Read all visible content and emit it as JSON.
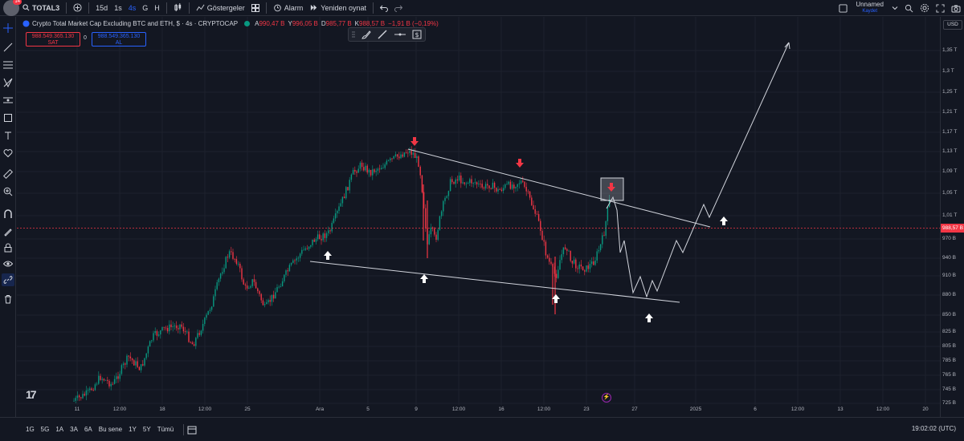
{
  "topbar": {
    "notification_count": "14",
    "symbol": "TOTAL3",
    "intervals": [
      "15d",
      "1s",
      "4s",
      "G",
      "H"
    ],
    "active_interval": "4s",
    "indicators_label": "Göstergeler",
    "alarm_label": "Alarm",
    "replay_label": "Yeniden oynat",
    "layout_name": "Unnamed",
    "layout_status": "Kaydet"
  },
  "legend": {
    "title": "Crypto Total Market Cap Excluding BTC and ETH, $ · 4s · CRYPTOCAP",
    "open_label": "A",
    "open": "990,47 B",
    "high_label": "Y",
    "high": "996,05 B",
    "low_label": "D",
    "low": "985,77 B",
    "close_label": "K",
    "close": "988,57 B",
    "change": "−1,91 B (−0,19%)"
  },
  "trade": {
    "sell_price": "988.549.365.130",
    "sell_label": "SAT",
    "spread": "0",
    "buy_price": "988.549.365.130",
    "buy_label": "AL"
  },
  "price_axis": {
    "currency": "USD",
    "labels": [
      {
        "text": "1,35 T",
        "value": 1350
      },
      {
        "text": "1,3 T",
        "value": 1300
      },
      {
        "text": "1,25 T",
        "value": 1250
      },
      {
        "text": "1,21 T",
        "value": 1210
      },
      {
        "text": "1,17 T",
        "value": 1170
      },
      {
        "text": "1,13 T",
        "value": 1130
      },
      {
        "text": "1,09 T",
        "value": 1090
      },
      {
        "text": "1,05 T",
        "value": 1050
      },
      {
        "text": "1,01 T",
        "value": 1010
      },
      {
        "text": "970 B",
        "value": 970
      },
      {
        "text": "940 B",
        "value": 940
      },
      {
        "text": "910 B",
        "value": 910
      },
      {
        "text": "880 B",
        "value": 880
      },
      {
        "text": "850 B",
        "value": 850
      },
      {
        "text": "825 B",
        "value": 825
      },
      {
        "text": "805 B",
        "value": 805
      },
      {
        "text": "785 B",
        "value": 785
      },
      {
        "text": "765 B",
        "value": 765
      },
      {
        "text": "745 B",
        "value": 745
      },
      {
        "text": "725 B",
        "value": 725
      }
    ],
    "current_price": "988,57 B"
  },
  "time_axis": [
    "11",
    "12:00",
    "18",
    "12:00",
    "25",
    "Ara",
    "5",
    "9",
    "12:00",
    "16",
    "12:00",
    "23",
    "27",
    "2025",
    "6",
    "12:00",
    "13",
    "12:00",
    "20"
  ],
  "bottombar": {
    "ranges": [
      "1G",
      "5G",
      "1A",
      "3A",
      "6A",
      "Bu sene",
      "1Y",
      "5Y",
      "Tümü"
    ],
    "clock": "19:02:02 (UTC)"
  },
  "colors": {
    "up": "#089981",
    "down": "#f23645",
    "background": "#131722",
    "accent": "#2962ff",
    "drawing": "#d1d4dc"
  }
}
